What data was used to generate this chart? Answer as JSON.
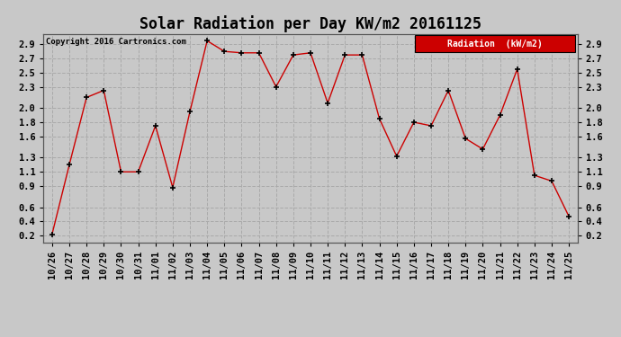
{
  "title": "Solar Radiation per Day KW/m2 20161125",
  "copyright_text": "Copyright 2016 Cartronics.com",
  "legend_label": "Radiation  (kW/m2)",
  "dates": [
    "10/26",
    "10/27",
    "10/28",
    "10/29",
    "10/30",
    "10/31",
    "11/01",
    "11/02",
    "11/03",
    "11/04",
    "11/05",
    "11/06",
    "11/07",
    "11/08",
    "11/09",
    "11/10",
    "11/11",
    "11/12",
    "11/13",
    "11/14",
    "11/15",
    "11/16",
    "11/17",
    "11/18",
    "11/19",
    "11/20",
    "11/21",
    "11/22",
    "11/23",
    "11/24",
    "11/25"
  ],
  "values": [
    0.22,
    1.2,
    2.15,
    2.25,
    1.1,
    1.1,
    1.75,
    0.88,
    1.95,
    2.95,
    2.8,
    2.78,
    2.78,
    2.3,
    2.75,
    2.78,
    2.07,
    2.75,
    2.75,
    1.85,
    1.32,
    1.8,
    1.75,
    2.25,
    1.57,
    1.42,
    1.9,
    2.55,
    1.05,
    0.97,
    0.47
  ],
  "line_color": "#cc0000",
  "marker_color": "#000000",
  "background_color": "#c8c8c8",
  "plot_bg_color": "#c8c8c8",
  "grid_color": "#aaaaaa",
  "ylim": [
    0.1,
    3.05
  ],
  "yticks": [
    0.2,
    0.4,
    0.6,
    0.9,
    1.1,
    1.3,
    1.6,
    1.8,
    2.0,
    2.3,
    2.5,
    2.7,
    2.9
  ],
  "legend_bg": "#cc0000",
  "legend_text_color": "#ffffff",
  "title_fontsize": 12,
  "tick_fontsize": 7.5
}
